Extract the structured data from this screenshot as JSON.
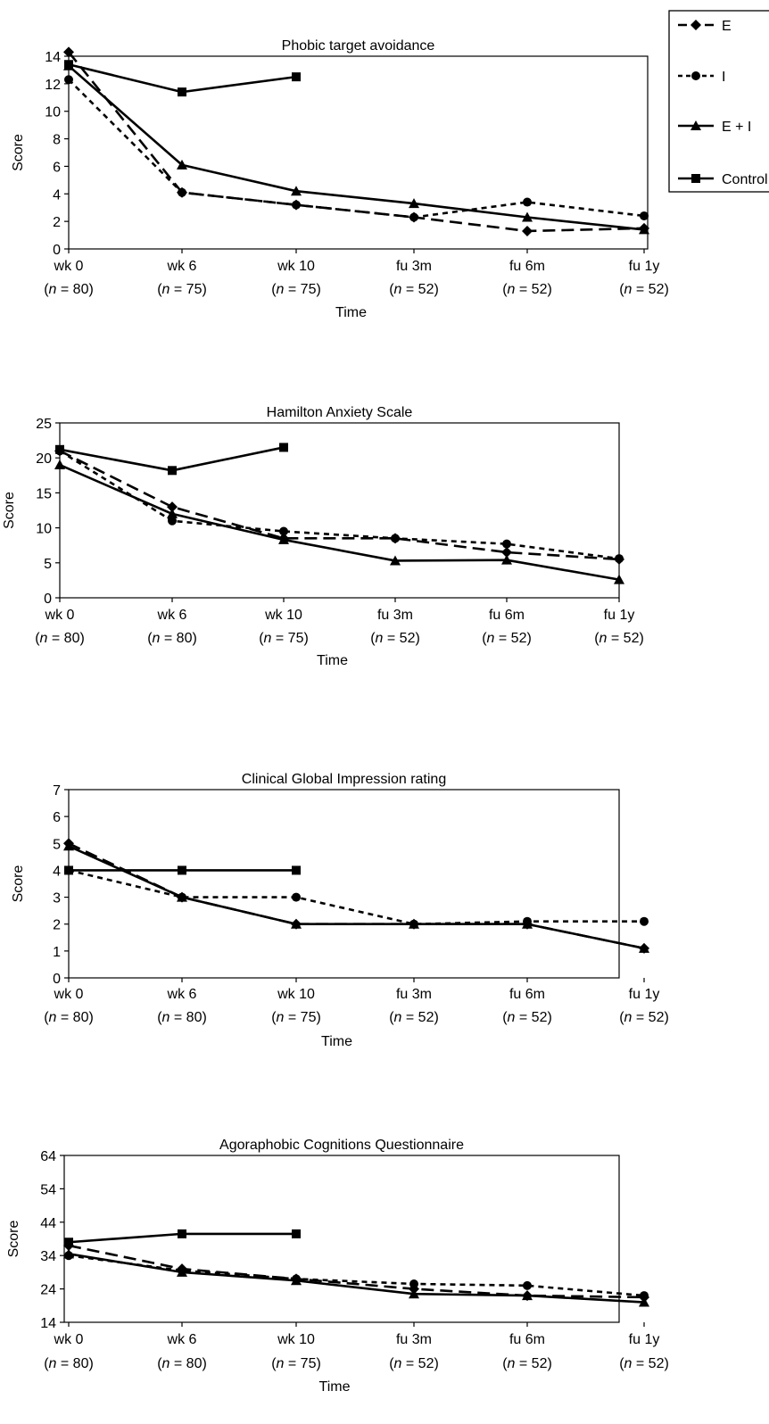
{
  "legend": {
    "entries": [
      {
        "label": "E",
        "marker": "diamond",
        "dash": "long"
      },
      {
        "label": "I",
        "marker": "circle",
        "dash": "short"
      },
      {
        "label": "E + I",
        "marker": "triangle",
        "dash": "solid"
      },
      {
        "label": "Control",
        "marker": "square",
        "dash": "solid"
      }
    ]
  },
  "colors": {
    "ink": "#000000",
    "background": "#ffffff"
  },
  "chart_data": [
    {
      "type": "line",
      "title": "Phobic target avoidance",
      "xlabel": "Time",
      "ylabel": "Score",
      "categories": [
        "wk 0",
        "wk 6",
        "wk 10",
        "fu 3m",
        "fu 6m",
        "fu 1y"
      ],
      "n_labels": [
        "80",
        "75",
        "75",
        "52",
        "52",
        "52"
      ],
      "ylim": [
        0,
        14
      ],
      "yticks": [
        0,
        2,
        4,
        6,
        8,
        10,
        12,
        14
      ],
      "series": [
        {
          "name": "E",
          "values": [
            14.3,
            4.1,
            3.2,
            2.3,
            1.3,
            1.5
          ]
        },
        {
          "name": "I",
          "values": [
            12.3,
            4.1,
            3.2,
            2.3,
            3.4,
            2.4
          ]
        },
        {
          "name": "E + I",
          "values": [
            13.3,
            6.1,
            4.2,
            3.3,
            2.3,
            1.4
          ]
        },
        {
          "name": "Control",
          "values": [
            13.4,
            11.4,
            12.5,
            null,
            null,
            null
          ]
        }
      ]
    },
    {
      "type": "line",
      "title": "Hamilton Anxiety Scale",
      "xlabel": "Time",
      "ylabel": "Score",
      "categories": [
        "wk 0",
        "wk 6",
        "wk 10",
        "fu 3m",
        "fu 6m",
        "fu 1y"
      ],
      "n_labels": [
        "80",
        "80",
        "75",
        "52",
        "52",
        "52"
      ],
      "ylim": [
        0,
        25
      ],
      "yticks": [
        0,
        5,
        10,
        15,
        20,
        25
      ],
      "series": [
        {
          "name": "E",
          "values": [
            21.0,
            13.0,
            8.5,
            8.5,
            6.5,
            5.5
          ]
        },
        {
          "name": "I",
          "values": [
            21.0,
            11.0,
            9.5,
            8.5,
            7.7,
            5.6
          ]
        },
        {
          "name": "E + I",
          "values": [
            19.0,
            12.0,
            8.3,
            5.3,
            5.4,
            2.6
          ]
        },
        {
          "name": "Control",
          "values": [
            21.2,
            18.2,
            21.5,
            null,
            null,
            null
          ]
        }
      ]
    },
    {
      "type": "line",
      "title": "Clinical Global Impression rating",
      "xlabel": "Time",
      "ylabel": "Score",
      "categories": [
        "wk 0",
        "wk 6",
        "wk 10",
        "fu 3m",
        "fu 6m",
        "fu 1y"
      ],
      "n_labels": [
        "80",
        "80",
        "75",
        "52",
        "52",
        "52"
      ],
      "ylim": [
        0,
        7
      ],
      "yticks": [
        0,
        1,
        2,
        3,
        4,
        5,
        6,
        7
      ],
      "series": [
        {
          "name": "E",
          "values": [
            5.0,
            3.0,
            2.0,
            2.0,
            2.0,
            1.1
          ]
        },
        {
          "name": "I",
          "values": [
            4.0,
            3.0,
            3.0,
            2.0,
            2.1,
            2.1
          ]
        },
        {
          "name": "E + I",
          "values": [
            4.9,
            3.0,
            2.0,
            2.0,
            2.0,
            1.1
          ]
        },
        {
          "name": "Control",
          "values": [
            4.0,
            4.0,
            4.0,
            null,
            null,
            null
          ]
        }
      ]
    },
    {
      "type": "line",
      "title": "Agoraphobic Cognitions Questionnaire",
      "xlabel": "Time",
      "ylabel": "Score",
      "categories": [
        "wk 0",
        "wk 6",
        "wk 10",
        "fu 3m",
        "fu 6m",
        "fu 1y"
      ],
      "n_labels": [
        "80",
        "80",
        "75",
        "52",
        "52",
        "52"
      ],
      "ylim": [
        14,
        64
      ],
      "yticks": [
        14,
        24,
        34,
        44,
        54,
        64
      ],
      "series": [
        {
          "name": "E",
          "values": [
            37.0,
            30.0,
            27.0,
            24.0,
            22.0,
            21.5
          ]
        },
        {
          "name": "I",
          "values": [
            34.0,
            29.5,
            27.0,
            25.5,
            25.0,
            22.0
          ]
        },
        {
          "name": "E + I",
          "values": [
            34.5,
            29.0,
            26.5,
            22.5,
            22.0,
            20.0
          ]
        },
        {
          "name": "Control",
          "values": [
            38.0,
            40.5,
            40.5,
            null,
            null,
            null
          ]
        }
      ]
    }
  ]
}
